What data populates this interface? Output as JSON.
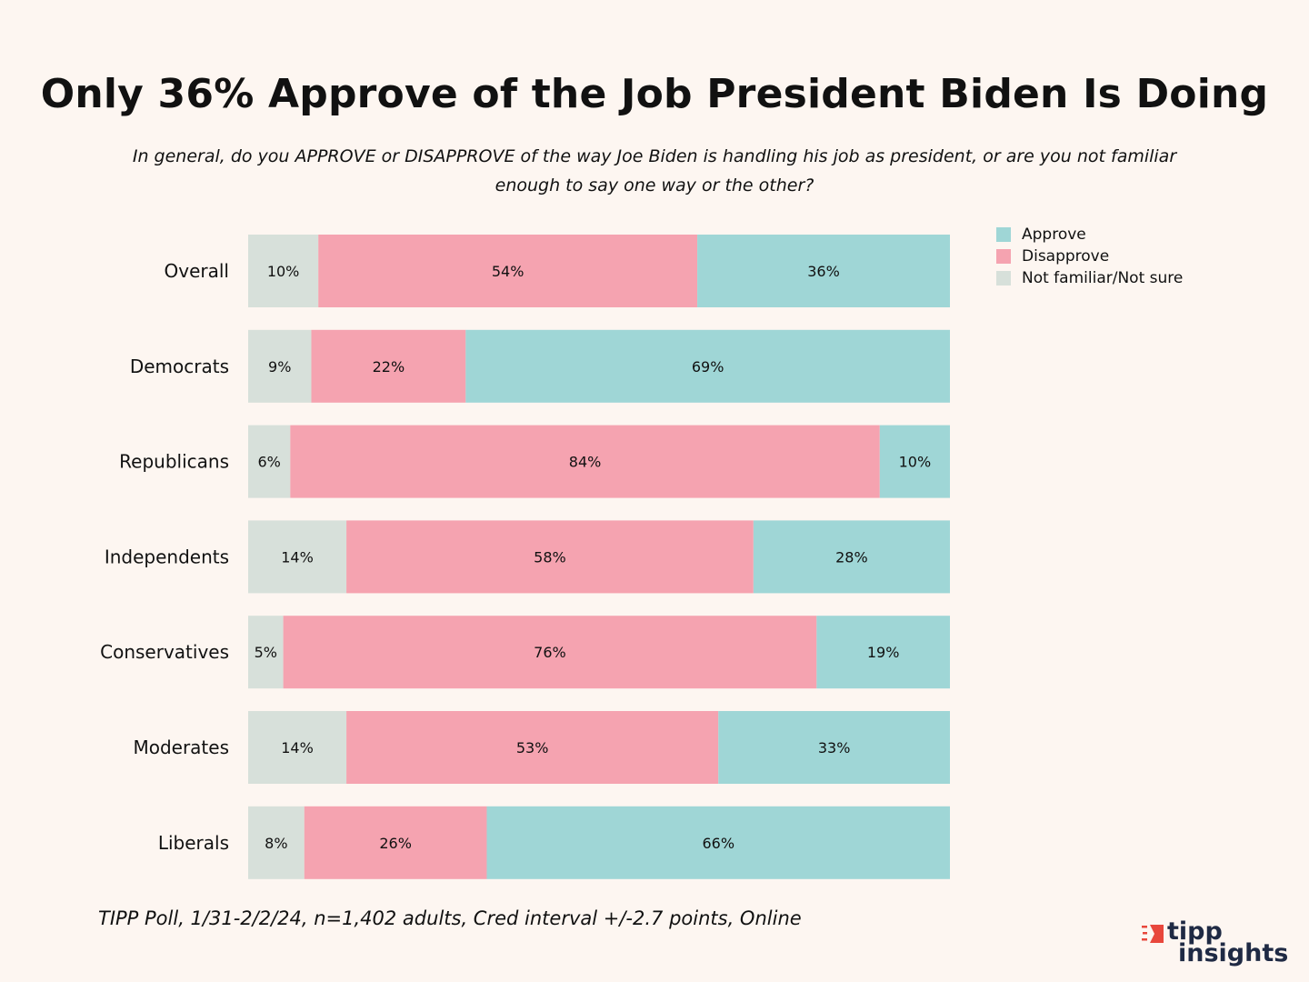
{
  "title": "Only 36% Approve of the Job President Biden Is Doing",
  "subtitle": "In general, do you APPROVE or DISAPPROVE of the way Joe Biden is handling his job as president, or are you not familiar enough to say one way or the other?",
  "footer": "TIPP Poll, 1/31-2/2/24, n=1,402 adults, Cred interval +/-2.7 points, Online",
  "logo": {
    "line1": "tipp",
    "line2": "insights"
  },
  "colors": {
    "approve": "#9fd6d6",
    "disapprove": "#f5a3b0",
    "not_sure": "#d7e0da",
    "logo_accent": "#e8473c"
  },
  "chart_data": {
    "type": "bar",
    "orientation": "horizontal",
    "stacked": true,
    "title": "Only 36% Approve of the Job President Biden Is Doing",
    "categories": [
      "Overall",
      "Democrats",
      "Republicans",
      "Independents",
      "Conservatives",
      "Moderates",
      "Liberals"
    ],
    "series": [
      {
        "name": "Not familiar/Not sure",
        "values": [
          10,
          9,
          6,
          14,
          5,
          14,
          8
        ]
      },
      {
        "name": "Disapprove",
        "values": [
          54,
          22,
          84,
          58,
          76,
          53,
          26
        ]
      },
      {
        "name": "Approve",
        "values": [
          36,
          69,
          10,
          28,
          19,
          33,
          66
        ]
      }
    ],
    "legend_order": [
      "Approve",
      "Disapprove",
      "Not familiar/Not sure"
    ],
    "xlim": [
      0,
      100
    ],
    "grid": false,
    "legend_position": "top-right",
    "value_suffix": "%"
  }
}
